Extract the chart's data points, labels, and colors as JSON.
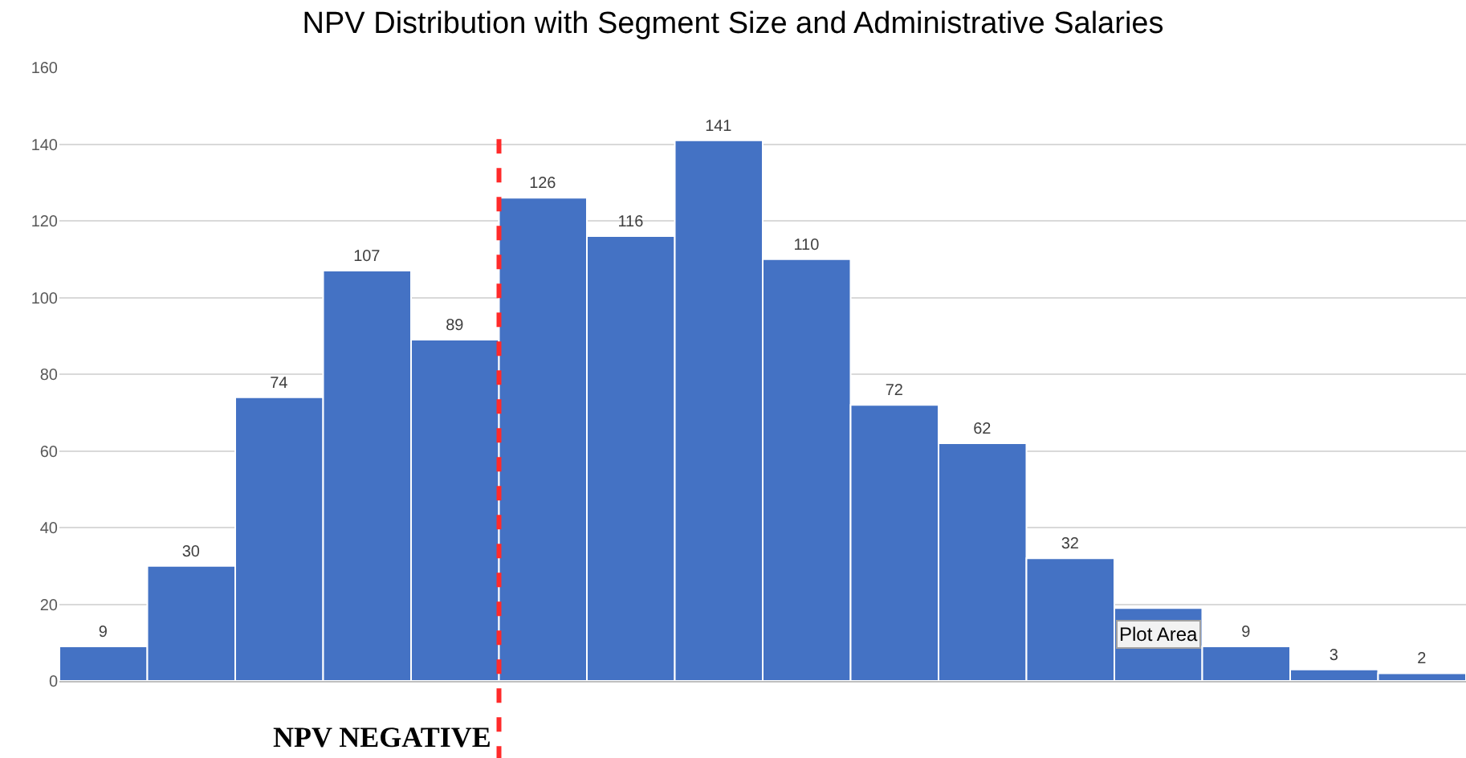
{
  "chart_data": {
    "type": "bar",
    "title": "NPV Distribution with Segment Size and Administrative Salaries",
    "categories": [
      null,
      null,
      null,
      null,
      null,
      null,
      null,
      null,
      null,
      null,
      null,
      null,
      null,
      null,
      null,
      null
    ],
    "values": [
      9,
      30,
      74,
      107,
      89,
      126,
      116,
      141,
      110,
      72,
      62,
      32,
      19,
      9,
      3,
      2
    ],
    "value_labels": [
      "9",
      "30",
      "74",
      "107",
      "89",
      "126",
      "116",
      "141",
      "110",
      "72",
      "62",
      "32",
      null,
      "9",
      "3",
      "2"
    ],
    "color": "#4472c4",
    "ylim": [
      0,
      160
    ],
    "yticks": [
      0,
      20,
      40,
      60,
      80,
      100,
      120,
      140,
      160
    ],
    "grid": "y",
    "annotations": [
      "NPV NEGATIVE",
      "Plot Area"
    ]
  }
}
